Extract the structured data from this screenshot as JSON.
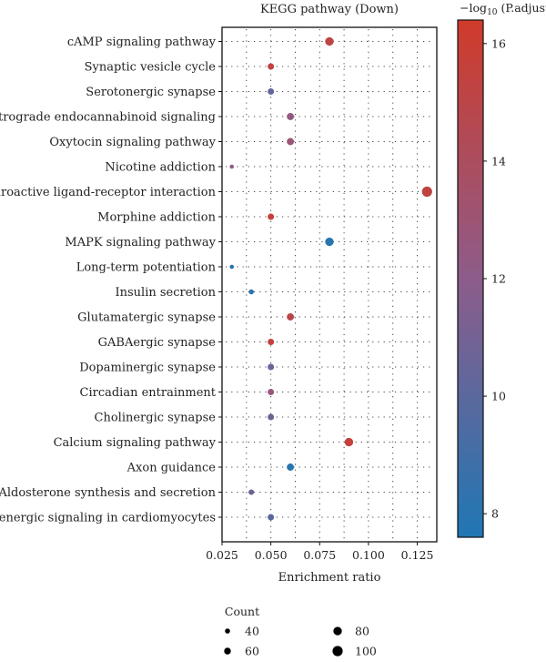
{
  "chart_data": {
    "type": "scatter",
    "title": "KEGG pathway (Down)",
    "xlabel": "Enrichment ratio",
    "ylabel": "",
    "xlim": [
      0.025,
      0.135
    ],
    "xticks": [
      "0.025",
      "0.050",
      "0.075",
      "0.100",
      "0.125"
    ],
    "grid": true,
    "categories": [
      "cAMP signaling pathway",
      "Synaptic vesicle cycle",
      "Serotonergic synapse",
      "Retrograde endocannabinoid signaling",
      "Oxytocin signaling pathway",
      "Nicotine addiction",
      "Neuroactive ligand-receptor interaction",
      "Morphine addiction",
      "MAPK signaling pathway",
      "Long-term potentiation",
      "Insulin secretion",
      "Glutamatergic synapse",
      "GABAergic synapse",
      "Dopaminergic synapse",
      "Circadian entrainment",
      "Cholinergic synapse",
      "Calcium signaling pathway",
      "Axon guidance",
      "Aldosterone synthesis and secretion",
      "Adrenergic signaling in cardiomyocytes"
    ],
    "x": [
      0.08,
      0.05,
      0.05,
      0.06,
      0.06,
      0.03,
      0.13,
      0.05,
      0.08,
      0.03,
      0.04,
      0.06,
      0.05,
      0.05,
      0.05,
      0.05,
      0.09,
      0.06,
      0.04,
      0.05
    ],
    "count": [
      80,
      55,
      55,
      65,
      65,
      30,
      100,
      55,
      80,
      30,
      40,
      65,
      55,
      55,
      55,
      55,
      80,
      65,
      45,
      55
    ],
    "neglog10_padjust": [
      15.3,
      15.5,
      10.3,
      12.4,
      12.9,
      12.2,
      15.3,
      15.6,
      8.0,
      8.0,
      8.1,
      15.0,
      15.6,
      10.5,
      12.7,
      10.7,
      15.6,
      7.9,
      10.5,
      10.0
    ],
    "colorbar": {
      "title": "−log",
      "title_sub": "10",
      "title_rest": " (P.adjust)",
      "ticks": [
        8,
        10,
        12,
        14,
        16
      ],
      "range": [
        7.6,
        16.4
      ],
      "color_low": "#1f77b4",
      "color_high": "#d03b2a"
    },
    "size_legend": {
      "title": "Count",
      "items": [
        40,
        80,
        60,
        100
      ]
    }
  }
}
